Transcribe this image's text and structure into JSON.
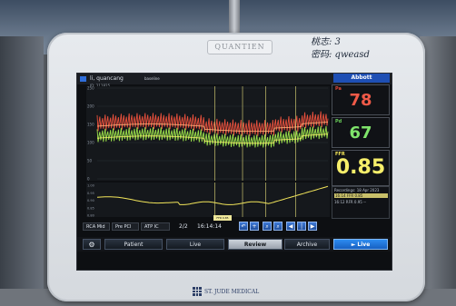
{
  "bezel": {
    "brand": "QUANTIEN",
    "handwriting_line1": "桃志: 3",
    "handwriting_line2": "密码: qweasd",
    "maker": "ST. JUDE MEDICAL"
  },
  "header": {
    "patient_name": "li, quancang",
    "patient_id": "ID: 211825",
    "mode": "baseline",
    "vendor": "Abbott"
  },
  "readings": {
    "pa_label": "Pa",
    "pa_value": "78",
    "pd_label": "Pd",
    "pd_value": "67",
    "ffr_label": "FFR",
    "ffr_value": "0.85"
  },
  "recordings": {
    "header": "Recordings: 18 Apr 2023",
    "selected_row": "16:14 FFR 0.85",
    "row": "16:12   RFR 0.95 --"
  },
  "controls": {
    "vessel": "RCA Mid",
    "stage": "Pre PCI",
    "drug": "ATP IC",
    "page": "2/2",
    "time": "16:14:14",
    "marker": "FFR 0.85"
  },
  "nav": {
    "patient": "Patient",
    "live": "Live",
    "review": "Review",
    "archive": "Archive",
    "live_button": "► Live"
  },
  "chart_data": [
    {
      "type": "line",
      "title": "",
      "ylim": [
        0,
        250
      ],
      "y_ticks": [
        "250",
        "200",
        "150",
        "100",
        "50",
        "0"
      ],
      "series": [
        {
          "name": "Pa",
          "color": "#e8503c"
        },
        {
          "name": "Pd",
          "color": "#9be04a"
        }
      ]
    },
    {
      "type": "line",
      "title": "",
      "ylim": [
        0.8,
        1.0
      ],
      "y_ticks": [
        "1.00",
        "0.95",
        "0.90",
        "0.85",
        "0.80"
      ],
      "annotation": "FFR 0.85",
      "series": [
        {
          "name": "FFR",
          "color": "#f3e65a"
        }
      ]
    }
  ]
}
